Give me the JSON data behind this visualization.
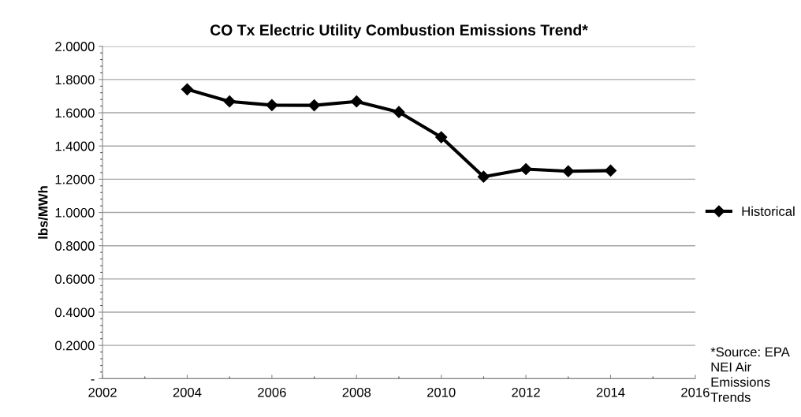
{
  "chart_data": {
    "type": "line",
    "title": "CO Tx Electric Utility Combustion Emissions Trend*",
    "ylabel": "lbs/MWh",
    "x": [
      2004,
      2005,
      2006,
      2007,
      2008,
      2009,
      2010,
      2011,
      2012,
      2013,
      2014
    ],
    "series": [
      {
        "name": "Historical",
        "color": "#000000",
        "values": [
          1.741,
          1.668,
          1.646,
          1.645,
          1.668,
          1.604,
          1.453,
          1.215,
          1.261,
          1.248,
          1.252
        ]
      }
    ],
    "xlim": [
      2002,
      2016
    ],
    "xticks": [
      2002,
      2004,
      2006,
      2008,
      2010,
      2012,
      2014,
      2016
    ],
    "ylim": [
      0,
      2
    ],
    "yticks": [
      {
        "value": 0,
        "label": "-"
      },
      {
        "value": 0.2,
        "label": "0.2000"
      },
      {
        "value": 0.4,
        "label": "0.4000"
      },
      {
        "value": 0.6,
        "label": "0.6000"
      },
      {
        "value": 0.8,
        "label": "0.8000"
      },
      {
        "value": 1.0,
        "label": "1.0000"
      },
      {
        "value": 1.2,
        "label": "1.2000"
      },
      {
        "value": 1.4,
        "label": "1.4000"
      },
      {
        "value": 1.6,
        "label": "1.6000"
      },
      {
        "value": 1.8,
        "label": "1.8000"
      },
      {
        "value": 2.0,
        "label": "2.0000"
      }
    ],
    "grid": "y",
    "legend": "right",
    "marker": "diamond",
    "line_style": "solid",
    "annotations": [
      "*Source: EPA\nNEI Air\nEmissions\nTrends"
    ]
  }
}
